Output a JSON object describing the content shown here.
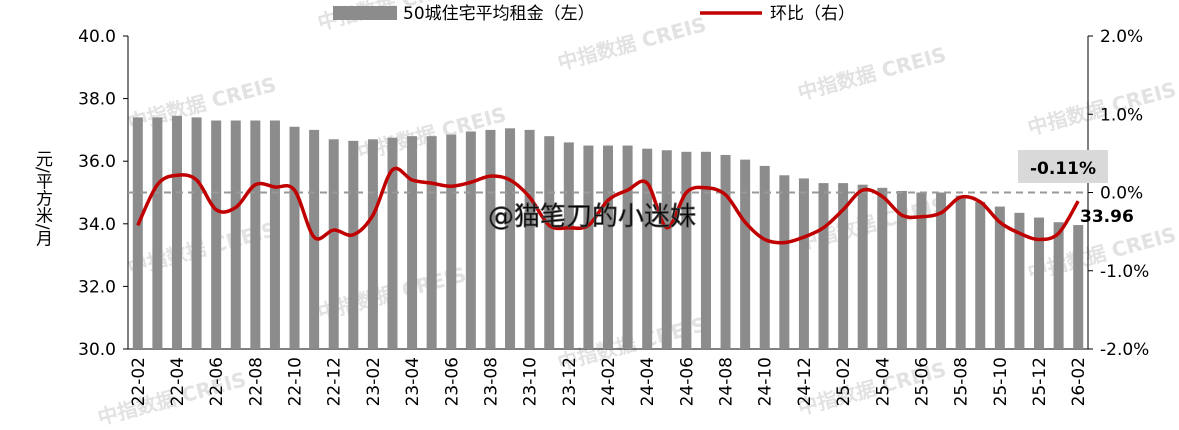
{
  "chart_data": {
    "type": "bar_line",
    "legend_labels": [
      "50城住宅平均租金（左）",
      "环比（右）"
    ],
    "ylabel": "元/平方米/月",
    "watermarks": [
      "中指数据 CREIS",
      "@猫笔刀的小迷妹"
    ],
    "categories": [
      "22-02",
      null,
      "22-04",
      null,
      "22-06",
      null,
      "22-08",
      null,
      "22-10",
      null,
      "22-12",
      null,
      "23-02",
      null,
      "23-04",
      null,
      "23-06",
      null,
      "23-08",
      null,
      "23-10",
      null,
      "23-12",
      null,
      "24-02",
      null,
      "24-04",
      null,
      "24-06",
      null,
      "24-08",
      null,
      "24-10",
      null,
      "24-12",
      null,
      "25-02",
      null,
      "25-04",
      null,
      "25-06",
      null,
      "25-08",
      null,
      "25-10",
      null,
      "25-12",
      null,
      "26-02"
    ],
    "series": [
      {
        "name": "50城住宅平均租金（左）",
        "color": "#8c8c8c",
        "axis": "y",
        "values": [
          37.4,
          37.4,
          37.45,
          37.4,
          37.3,
          37.3,
          37.3,
          37.3,
          37.1,
          37.0,
          36.7,
          36.65,
          36.7,
          36.75,
          36.8,
          36.8,
          36.85,
          36.95,
          37.0,
          37.05,
          37.0,
          36.8,
          36.6,
          36.5,
          36.5,
          36.5,
          36.4,
          36.35,
          36.3,
          36.3,
          36.2,
          36.05,
          35.85,
          35.55,
          35.45,
          35.3,
          35.3,
          35.25,
          35.15,
          35.05,
          35.0,
          35.0,
          34.9,
          34.7,
          34.55,
          34.35,
          34.2,
          34.05,
          33.96
        ],
        "value_labels": [
          null,
          null,
          null,
          null,
          null,
          null,
          null,
          null,
          null,
          null,
          null,
          null,
          null,
          null,
          null,
          null,
          null,
          null,
          null,
          null,
          null,
          null,
          null,
          null,
          null,
          null,
          null,
          null,
          null,
          null,
          null,
          null,
          null,
          null,
          null,
          null,
          null,
          null,
          null,
          null,
          null,
          null,
          null,
          null,
          null,
          null,
          null,
          null,
          "33.96"
        ]
      },
      {
        "name": "环比（右）",
        "color": "#c00000",
        "axis": "y2",
        "values": [
          -0.42,
          0.1,
          0.22,
          0.16,
          -0.22,
          -0.19,
          0.1,
          0.07,
          0.03,
          -0.57,
          -0.48,
          -0.54,
          -0.29,
          0.29,
          0.16,
          0.12,
          0.08,
          0.13,
          0.21,
          0.16,
          -0.06,
          -0.42,
          -0.45,
          -0.42,
          -0.1,
          0.03,
          0.12,
          -0.45,
          0.0,
          0.06,
          -0.03,
          -0.38,
          -0.6,
          -0.64,
          -0.57,
          -0.45,
          -0.22,
          0.03,
          -0.05,
          -0.29,
          -0.31,
          -0.26,
          -0.06,
          -0.12,
          -0.38,
          -0.52,
          -0.6,
          -0.52,
          -0.11
        ],
        "value_labels": [
          null,
          null,
          null,
          null,
          null,
          null,
          null,
          null,
          null,
          null,
          null,
          null,
          null,
          null,
          null,
          null,
          null,
          null,
          null,
          null,
          null,
          null,
          null,
          null,
          null,
          null,
          null,
          null,
          null,
          null,
          null,
          null,
          null,
          null,
          null,
          null,
          null,
          null,
          null,
          null,
          null,
          null,
          null,
          null,
          null,
          null,
          null,
          null,
          "-0.11%"
        ]
      }
    ],
    "ylim": [
      30,
      40
    ],
    "yticks": [
      {
        "value": 30,
        "label": "30.0"
      },
      {
        "value": 32,
        "label": "32.0"
      },
      {
        "value": 34,
        "label": "34.0"
      },
      {
        "value": 36,
        "label": "36.0"
      },
      {
        "value": 38,
        "label": "38.0"
      },
      {
        "value": 40,
        "label": "40.0"
      }
    ],
    "y2lim": [
      -2,
      2
    ],
    "y2ticks": [
      {
        "value": -2,
        "label": "-2.0%"
      },
      {
        "value": -1,
        "label": "-1.0%"
      },
      {
        "value": 0,
        "label": "0.0%"
      },
      {
        "value": 1,
        "label": "1.0%"
      },
      {
        "value": 2,
        "label": "2.0%"
      }
    ],
    "zero_line_y2": 0
  }
}
